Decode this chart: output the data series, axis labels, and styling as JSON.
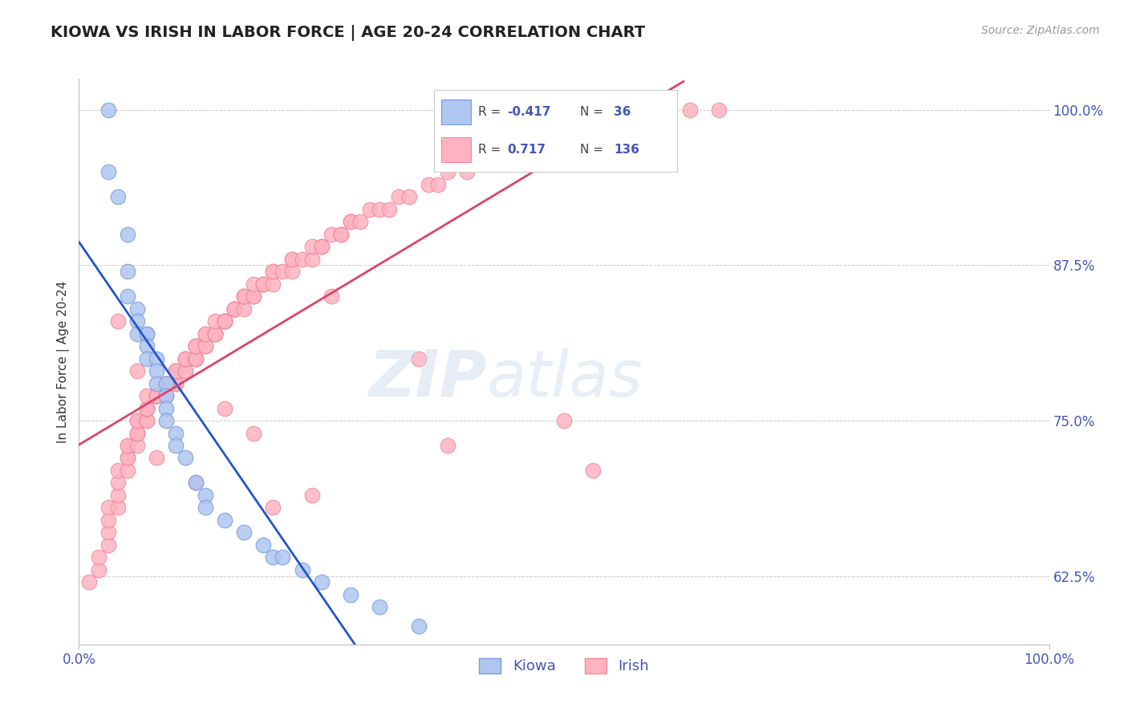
{
  "title": "KIOWA VS IRISH IN LABOR FORCE | AGE 20-24 CORRELATION CHART",
  "source_text": "Source: ZipAtlas.com",
  "ylabel": "In Labor Force | Age 20-24",
  "xlim": [
    0.0,
    1.0
  ],
  "ylim": [
    0.57,
    1.025
  ],
  "xticklabels": [
    "0.0%",
    "100.0%"
  ],
  "ytick_positions": [
    0.625,
    0.75,
    0.875,
    1.0
  ],
  "yticklabels": [
    "62.5%",
    "75.0%",
    "87.5%",
    "100.0%"
  ],
  "grid_color": "#cccccc",
  "background_color": "#ffffff",
  "title_color": "#222222",
  "axis_color": "#4455bb",
  "kiowa_color": "#aec6f0",
  "kiowa_edge_color": "#7799dd",
  "irish_color": "#ffb3c1",
  "irish_edge_color": "#ee8899",
  "kiowa_line_color": "#2255cc",
  "irish_line_color": "#dd4466",
  "kiowa_R": -0.417,
  "kiowa_N": 36,
  "irish_R": 0.717,
  "irish_N": 136,
  "kiowa_x": [
    0.03,
    0.03,
    0.04,
    0.05,
    0.05,
    0.05,
    0.06,
    0.06,
    0.06,
    0.07,
    0.07,
    0.07,
    0.07,
    0.08,
    0.08,
    0.08,
    0.09,
    0.09,
    0.09,
    0.09,
    0.1,
    0.1,
    0.11,
    0.12,
    0.13,
    0.13,
    0.15,
    0.17,
    0.19,
    0.2,
    0.21,
    0.23,
    0.25,
    0.28,
    0.31,
    0.35
  ],
  "kiowa_y": [
    1.0,
    0.95,
    0.93,
    0.9,
    0.87,
    0.85,
    0.84,
    0.83,
    0.82,
    0.82,
    0.82,
    0.81,
    0.8,
    0.8,
    0.79,
    0.78,
    0.78,
    0.77,
    0.76,
    0.75,
    0.74,
    0.73,
    0.72,
    0.7,
    0.69,
    0.68,
    0.67,
    0.66,
    0.65,
    0.64,
    0.64,
    0.63,
    0.62,
    0.61,
    0.6,
    0.585
  ],
  "irish_x": [
    0.01,
    0.02,
    0.02,
    0.03,
    0.03,
    0.03,
    0.03,
    0.04,
    0.04,
    0.04,
    0.04,
    0.05,
    0.05,
    0.05,
    0.05,
    0.05,
    0.06,
    0.06,
    0.06,
    0.06,
    0.06,
    0.06,
    0.07,
    0.07,
    0.07,
    0.07,
    0.07,
    0.07,
    0.07,
    0.08,
    0.08,
    0.08,
    0.08,
    0.08,
    0.09,
    0.09,
    0.09,
    0.09,
    0.09,
    0.1,
    0.1,
    0.1,
    0.1,
    0.1,
    0.1,
    0.11,
    0.11,
    0.11,
    0.11,
    0.11,
    0.12,
    0.12,
    0.12,
    0.12,
    0.12,
    0.12,
    0.12,
    0.13,
    0.13,
    0.13,
    0.13,
    0.14,
    0.14,
    0.14,
    0.14,
    0.14,
    0.15,
    0.15,
    0.15,
    0.15,
    0.15,
    0.16,
    0.16,
    0.16,
    0.16,
    0.17,
    0.17,
    0.17,
    0.17,
    0.18,
    0.18,
    0.18,
    0.19,
    0.19,
    0.19,
    0.2,
    0.2,
    0.2,
    0.21,
    0.22,
    0.22,
    0.22,
    0.23,
    0.24,
    0.24,
    0.25,
    0.25,
    0.26,
    0.27,
    0.27,
    0.28,
    0.28,
    0.29,
    0.3,
    0.31,
    0.32,
    0.33,
    0.34,
    0.36,
    0.37,
    0.38,
    0.4,
    0.42,
    0.44,
    0.46,
    0.48,
    0.5,
    0.52,
    0.55,
    0.57,
    0.6,
    0.63,
    0.66,
    0.5,
    0.53,
    0.35,
    0.38,
    0.26,
    0.2,
    0.15,
    0.08,
    0.06,
    0.04,
    0.12,
    0.18,
    0.24
  ],
  "irish_y": [
    0.62,
    0.63,
    0.64,
    0.65,
    0.66,
    0.67,
    0.68,
    0.68,
    0.69,
    0.7,
    0.71,
    0.71,
    0.72,
    0.72,
    0.73,
    0.73,
    0.73,
    0.74,
    0.74,
    0.74,
    0.75,
    0.75,
    0.75,
    0.75,
    0.76,
    0.76,
    0.76,
    0.76,
    0.77,
    0.77,
    0.77,
    0.77,
    0.77,
    0.77,
    0.77,
    0.78,
    0.78,
    0.78,
    0.78,
    0.78,
    0.78,
    0.79,
    0.79,
    0.79,
    0.79,
    0.79,
    0.79,
    0.8,
    0.8,
    0.8,
    0.8,
    0.8,
    0.8,
    0.81,
    0.81,
    0.81,
    0.81,
    0.81,
    0.81,
    0.82,
    0.82,
    0.82,
    0.82,
    0.82,
    0.82,
    0.83,
    0.83,
    0.83,
    0.83,
    0.83,
    0.83,
    0.84,
    0.84,
    0.84,
    0.84,
    0.84,
    0.85,
    0.85,
    0.85,
    0.85,
    0.85,
    0.86,
    0.86,
    0.86,
    0.86,
    0.86,
    0.87,
    0.87,
    0.87,
    0.87,
    0.88,
    0.88,
    0.88,
    0.88,
    0.89,
    0.89,
    0.89,
    0.9,
    0.9,
    0.9,
    0.91,
    0.91,
    0.91,
    0.92,
    0.92,
    0.92,
    0.93,
    0.93,
    0.94,
    0.94,
    0.95,
    0.95,
    0.96,
    0.96,
    0.97,
    0.97,
    0.98,
    0.98,
    0.99,
    0.99,
    1.0,
    1.0,
    1.0,
    0.75,
    0.71,
    0.8,
    0.73,
    0.85,
    0.68,
    0.76,
    0.72,
    0.79,
    0.83,
    0.7,
    0.74,
    0.69
  ]
}
